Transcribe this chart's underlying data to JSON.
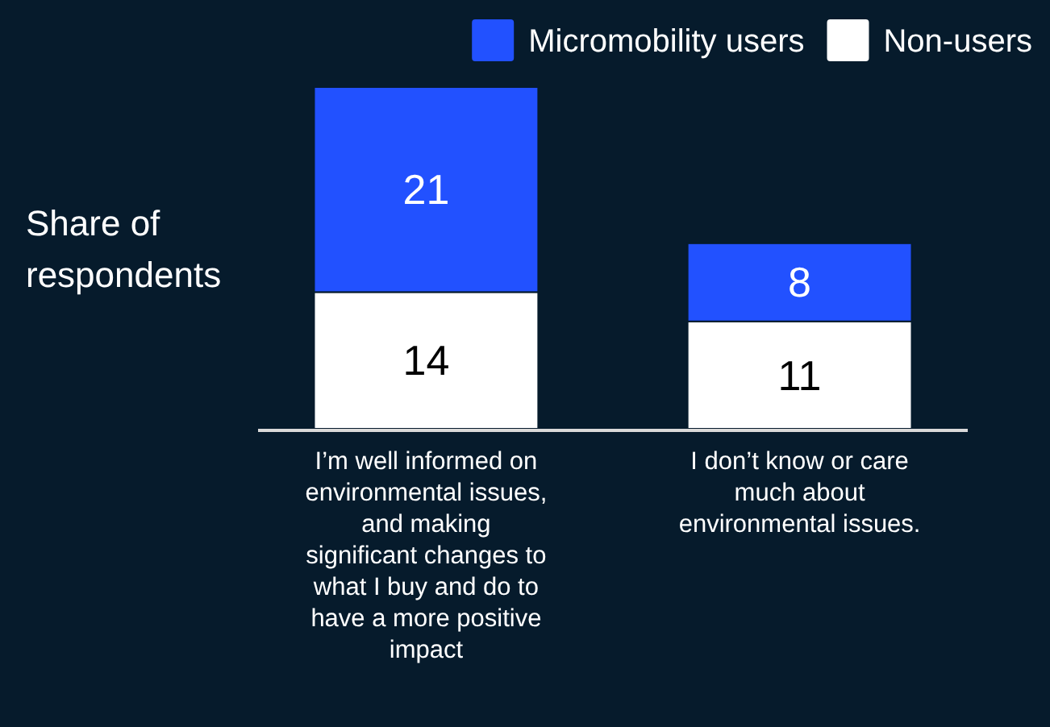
{
  "chart_data": {
    "type": "bar",
    "stacked": true,
    "ylabel": "Share of respondents",
    "categories": [
      "I’m well informed on environmental issues, and making significant changes to what I buy and do to have a more positive impact",
      "I don’t know or care much about environmental issues."
    ],
    "series": [
      {
        "name": "Non-users",
        "color": "#ffffff",
        "values": [
          14,
          11
        ]
      },
      {
        "name": "Micromobility users",
        "color": "#2251ff",
        "values": [
          21,
          8
        ]
      }
    ],
    "data_labels": true,
    "legend": "top right"
  }
}
